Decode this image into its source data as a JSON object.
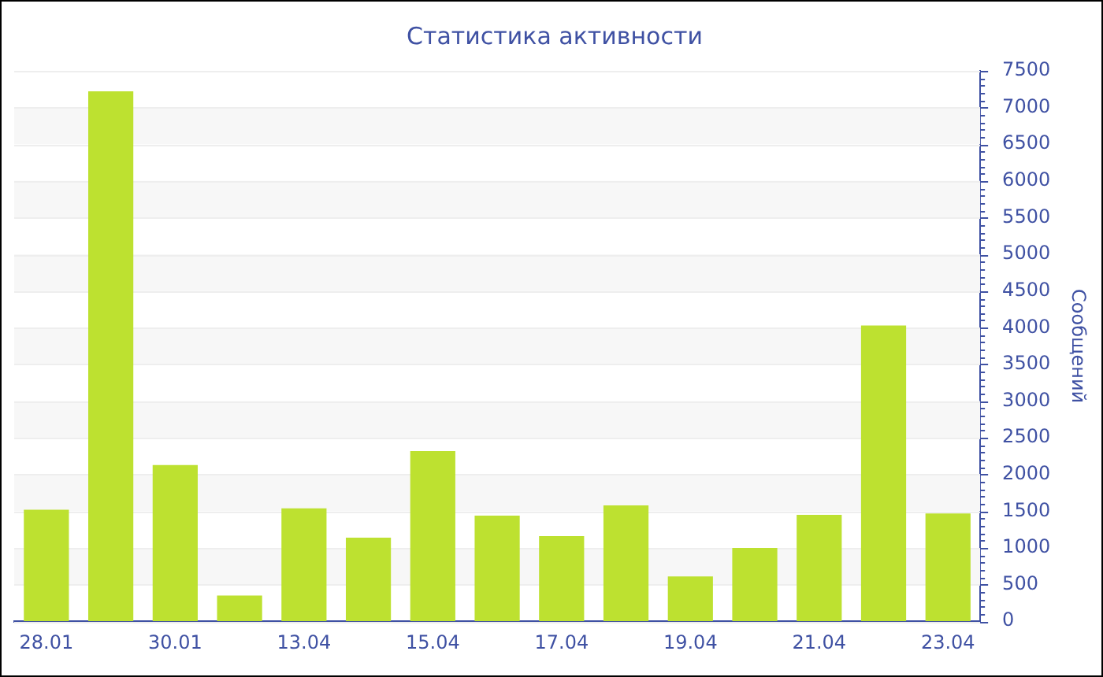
{
  "chart_data": {
    "type": "bar",
    "title": "Статистика активности",
    "ylabel": "Сообщений",
    "categories": [
      "28.01",
      null,
      "30.01",
      null,
      "13.04",
      null,
      "15.04",
      null,
      "17.04",
      null,
      "19.04",
      null,
      "21.04",
      null,
      "23.04"
    ],
    "values": [
      1520,
      7220,
      2130,
      350,
      1540,
      1140,
      2320,
      1440,
      1160,
      1580,
      610,
      1000,
      1450,
      4030,
      1470
    ],
    "color": "#bde130",
    "ylim": [
      0,
      7500
    ],
    "yticks": [
      0,
      {
        "value": 100,
        "label": null
      },
      {
        "value": 200,
        "label": null
      },
      {
        "value": 300,
        "label": null
      },
      {
        "value": 400,
        "label": null
      },
      500,
      {
        "value": 600,
        "label": null
      },
      {
        "value": 700,
        "label": null
      },
      {
        "value": 800,
        "label": null
      },
      {
        "value": 900,
        "label": null
      },
      1000,
      {
        "value": 1100,
        "label": null
      },
      {
        "value": 1200,
        "label": null
      },
      {
        "value": 1300,
        "label": null
      },
      {
        "value": 1400,
        "label": null
      },
      1500,
      {
        "value": 1600,
        "label": null
      },
      {
        "value": 1700,
        "label": null
      },
      {
        "value": 1800,
        "label": null
      },
      {
        "value": 1900,
        "label": null
      },
      2000,
      {
        "value": 2100,
        "label": null
      },
      {
        "value": 2200,
        "label": null
      },
      {
        "value": 2300,
        "label": null
      },
      {
        "value": 2400,
        "label": null
      },
      2500,
      {
        "value": 2600,
        "label": null
      },
      {
        "value": 2700,
        "label": null
      },
      {
        "value": 2800,
        "label": null
      },
      {
        "value": 2900,
        "label": null
      },
      3000,
      {
        "value": 3100,
        "label": null
      },
      {
        "value": 3200,
        "label": null
      },
      {
        "value": 3300,
        "label": null
      },
      {
        "value": 3400,
        "label": null
      },
      3500,
      {
        "value": 3600,
        "label": null
      },
      {
        "value": 3700,
        "label": null
      },
      {
        "value": 3800,
        "label": null
      },
      {
        "value": 3900,
        "label": null
      },
      4000,
      {
        "value": 4100,
        "label": null
      },
      {
        "value": 4200,
        "label": null
      },
      {
        "value": 4300,
        "label": null
      },
      {
        "value": 4400,
        "label": null
      },
      4500,
      {
        "value": 4600,
        "label": null
      },
      {
        "value": 4700,
        "label": null
      },
      {
        "value": 4800,
        "label": null
      },
      {
        "value": 4900,
        "label": null
      },
      5000,
      {
        "value": 5100,
        "label": null
      },
      {
        "value": 5200,
        "label": null
      },
      {
        "value": 5300,
        "label": null
      },
      {
        "value": 5400,
        "label": null
      },
      5500,
      {
        "value": 5600,
        "label": null
      },
      {
        "value": 5700,
        "label": null
      },
      {
        "value": 5800,
        "label": null
      },
      {
        "value": 5900,
        "label": null
      },
      6000,
      {
        "value": 6100,
        "label": null
      },
      {
        "value": 6200,
        "label": null
      },
      {
        "value": 6300,
        "label": null
      },
      {
        "value": 6400,
        "label": null
      },
      6500,
      {
        "value": 6600,
        "label": null
      },
      {
        "value": 6700,
        "label": null
      },
      {
        "value": 6800,
        "label": null
      },
      {
        "value": 6900,
        "label": null
      },
      7000,
      {
        "value": 7100,
        "label": null
      },
      {
        "value": 7200,
        "label": null
      },
      {
        "value": 7300,
        "label": null
      },
      {
        "value": 7400,
        "label": null
      },
      7500
    ],
    "grid": "y",
    "legend": false
  }
}
